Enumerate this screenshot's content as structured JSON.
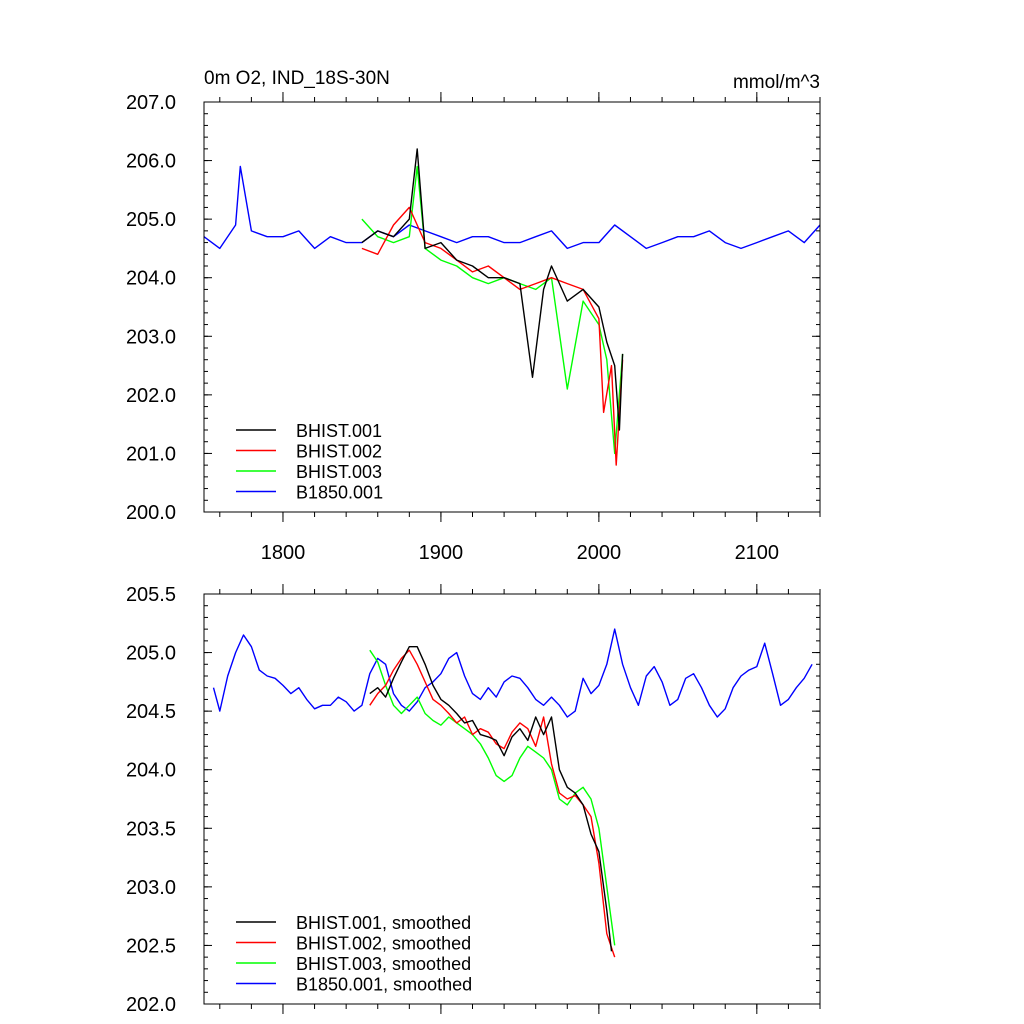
{
  "chart_data": [
    {
      "type": "line",
      "title": "0m O2, IND_18S-30N",
      "units": "mmol/m^3",
      "xlim": [
        1750,
        2140
      ],
      "ylim": [
        200.0,
        207.0
      ],
      "xticks": [
        1800,
        1900,
        2000,
        2100
      ],
      "xtick_labels": [
        "1800",
        "1900",
        "2000",
        "2100"
      ],
      "yticks": [
        200.0,
        201.0,
        202.0,
        203.0,
        204.0,
        205.0,
        206.0,
        207.0
      ],
      "ytick_labels": [
        "200.0",
        "201.0",
        "202.0",
        "203.0",
        "204.0",
        "205.0",
        "206.0",
        "207.0"
      ],
      "legend_position": "bottom-left",
      "series": [
        {
          "name": "BHIST.001",
          "color": "#000000",
          "x": [
            1850,
            1860,
            1870,
            1880,
            1885,
            1890,
            1900,
            1910,
            1920,
            1930,
            1940,
            1950,
            1958,
            1965,
            1970,
            1980,
            1990,
            2000,
            2005,
            2010,
            2013,
            2015
          ],
          "y": [
            204.6,
            204.8,
            204.7,
            205.0,
            206.2,
            204.5,
            204.6,
            204.3,
            204.2,
            204.0,
            204.0,
            203.9,
            202.3,
            203.8,
            204.2,
            203.6,
            203.8,
            203.5,
            202.9,
            202.5,
            201.4,
            202.7
          ]
        },
        {
          "name": "BHIST.002",
          "color": "#ff0000",
          "x": [
            1850,
            1860,
            1870,
            1880,
            1890,
            1900,
            1910,
            1920,
            1930,
            1940,
            1950,
            1960,
            1970,
            1980,
            1990,
            2000,
            2003,
            2008,
            2011,
            2015
          ],
          "y": [
            204.5,
            204.4,
            204.9,
            205.2,
            204.6,
            204.5,
            204.3,
            204.1,
            204.2,
            204.0,
            203.8,
            203.9,
            204.0,
            203.9,
            203.8,
            203.3,
            201.7,
            202.5,
            200.8,
            202.6
          ]
        },
        {
          "name": "BHIST.003",
          "color": "#00ff00",
          "x": [
            1850,
            1860,
            1870,
            1880,
            1885,
            1890,
            1900,
            1910,
            1920,
            1930,
            1940,
            1950,
            1960,
            1970,
            1980,
            1990,
            2000,
            2005,
            2010,
            2015
          ],
          "y": [
            205.0,
            204.7,
            204.6,
            204.7,
            205.9,
            204.5,
            204.3,
            204.2,
            204.0,
            203.9,
            204.0,
            203.9,
            203.8,
            204.0,
            202.1,
            203.6,
            203.2,
            202.6,
            201.0,
            202.7
          ]
        },
        {
          "name": "B1850.001",
          "color": "#0000ff",
          "x": [
            1750,
            1760,
            1770,
            1773,
            1780,
            1790,
            1800,
            1810,
            1820,
            1830,
            1840,
            1850,
            1860,
            1870,
            1880,
            1890,
            1900,
            1910,
            1920,
            1930,
            1940,
            1950,
            1960,
            1970,
            1980,
            1990,
            2000,
            2010,
            2020,
            2030,
            2040,
            2050,
            2060,
            2070,
            2080,
            2090,
            2100,
            2110,
            2120,
            2130,
            2140
          ],
          "y": [
            204.7,
            204.5,
            204.9,
            205.9,
            204.8,
            204.7,
            204.7,
            204.8,
            204.5,
            204.7,
            204.6,
            204.6,
            204.8,
            204.7,
            204.9,
            204.8,
            204.7,
            204.6,
            204.7,
            204.7,
            204.6,
            204.6,
            204.7,
            204.8,
            204.5,
            204.6,
            204.6,
            204.9,
            204.7,
            204.5,
            204.6,
            204.7,
            204.7,
            204.8,
            204.6,
            204.5,
            204.6,
            204.7,
            204.8,
            204.6,
            204.9
          ]
        }
      ]
    },
    {
      "type": "line",
      "title": "",
      "xlim": [
        1750,
        2140
      ],
      "ylim": [
        202.0,
        205.5
      ],
      "yticks": [
        202.0,
        202.5,
        203.0,
        203.5,
        204.0,
        204.5,
        205.0,
        205.5
      ],
      "ytick_labels": [
        "202.0",
        "202.5",
        "203.0",
        "203.5",
        "204.0",
        "204.5",
        "205.0",
        "205.5"
      ],
      "legend_position": "bottom-left",
      "series": [
        {
          "name": "BHIST.001, smoothed",
          "color": "#000000",
          "x": [
            1855,
            1860,
            1865,
            1870,
            1875,
            1880,
            1885,
            1890,
            1895,
            1900,
            1905,
            1910,
            1915,
            1920,
            1925,
            1930,
            1935,
            1940,
            1945,
            1950,
            1955,
            1960,
            1965,
            1970,
            1975,
            1980,
            1985,
            1990,
            1995,
            2000,
            2005,
            2008
          ],
          "y": [
            204.65,
            204.7,
            204.62,
            204.78,
            204.92,
            205.05,
            205.05,
            204.9,
            204.72,
            204.6,
            204.55,
            204.48,
            204.4,
            204.42,
            204.3,
            204.28,
            204.25,
            204.12,
            204.28,
            204.35,
            204.25,
            204.45,
            204.3,
            204.45,
            204.0,
            203.85,
            203.8,
            203.7,
            203.45,
            203.3,
            202.8,
            202.45
          ]
        },
        {
          "name": "BHIST.002, smoothed",
          "color": "#ff0000",
          "x": [
            1855,
            1860,
            1865,
            1870,
            1875,
            1880,
            1885,
            1890,
            1895,
            1900,
            1905,
            1910,
            1915,
            1920,
            1925,
            1930,
            1935,
            1940,
            1945,
            1950,
            1955,
            1960,
            1965,
            1970,
            1975,
            1980,
            1985,
            1990,
            1995,
            2000,
            2005,
            2010
          ],
          "y": [
            204.55,
            204.65,
            204.72,
            204.85,
            204.95,
            205.02,
            204.9,
            204.75,
            204.6,
            204.55,
            204.48,
            204.4,
            204.45,
            204.3,
            204.35,
            204.32,
            204.22,
            204.18,
            204.32,
            204.4,
            204.35,
            204.2,
            204.45,
            204.05,
            203.8,
            203.75,
            203.78,
            203.7,
            203.6,
            203.2,
            202.6,
            202.4
          ]
        },
        {
          "name": "BHIST.003, smoothed",
          "color": "#00ff00",
          "x": [
            1855,
            1860,
            1865,
            1870,
            1875,
            1880,
            1885,
            1890,
            1895,
            1900,
            1905,
            1910,
            1915,
            1920,
            1925,
            1930,
            1935,
            1940,
            1945,
            1950,
            1955,
            1960,
            1965,
            1970,
            1975,
            1980,
            1985,
            1990,
            1995,
            2000,
            2005,
            2010
          ],
          "y": [
            205.02,
            204.92,
            204.72,
            204.55,
            204.48,
            204.55,
            204.62,
            204.48,
            204.42,
            204.38,
            204.45,
            204.4,
            204.35,
            204.3,
            204.22,
            204.1,
            203.95,
            203.9,
            203.95,
            204.1,
            204.2,
            204.15,
            204.1,
            204.0,
            203.75,
            203.7,
            203.8,
            203.85,
            203.75,
            203.5,
            203.0,
            202.5
          ]
        },
        {
          "name": "B1850.001, smoothed",
          "color": "#0000ff",
          "x": [
            1756,
            1760,
            1765,
            1770,
            1775,
            1780,
            1785,
            1790,
            1795,
            1800,
            1805,
            1810,
            1815,
            1820,
            1825,
            1830,
            1835,
            1840,
            1845,
            1850,
            1855,
            1860,
            1865,
            1870,
            1875,
            1880,
            1885,
            1890,
            1895,
            1900,
            1905,
            1910,
            1915,
            1920,
            1925,
            1930,
            1935,
            1940,
            1945,
            1950,
            1955,
            1960,
            1965,
            1970,
            1975,
            1980,
            1985,
            1990,
            1995,
            2000,
            2005,
            2010,
            2015,
            2020,
            2025,
            2030,
            2035,
            2040,
            2045,
            2050,
            2055,
            2060,
            2065,
            2070,
            2075,
            2080,
            2085,
            2090,
            2095,
            2100,
            2105,
            2110,
            2115,
            2120,
            2125,
            2130,
            2135
          ],
          "y": [
            204.7,
            204.5,
            204.8,
            205.0,
            205.15,
            205.05,
            204.85,
            204.8,
            204.78,
            204.72,
            204.65,
            204.7,
            204.6,
            204.52,
            204.55,
            204.55,
            204.62,
            204.58,
            204.5,
            204.55,
            204.82,
            204.95,
            204.9,
            204.65,
            204.55,
            204.5,
            204.58,
            204.7,
            204.75,
            204.82,
            204.95,
            205.0,
            204.8,
            204.65,
            204.6,
            204.7,
            204.62,
            204.75,
            204.8,
            204.78,
            204.7,
            204.6,
            204.55,
            204.62,
            204.55,
            204.45,
            204.5,
            204.78,
            204.65,
            204.72,
            204.9,
            205.2,
            204.9,
            204.7,
            204.55,
            204.8,
            204.88,
            204.75,
            204.55,
            204.6,
            204.78,
            204.82,
            204.7,
            204.55,
            204.45,
            204.52,
            204.7,
            204.8,
            204.85,
            204.88,
            205.08,
            204.82,
            204.55,
            204.6,
            204.7,
            204.78,
            204.9
          ]
        }
      ]
    }
  ]
}
